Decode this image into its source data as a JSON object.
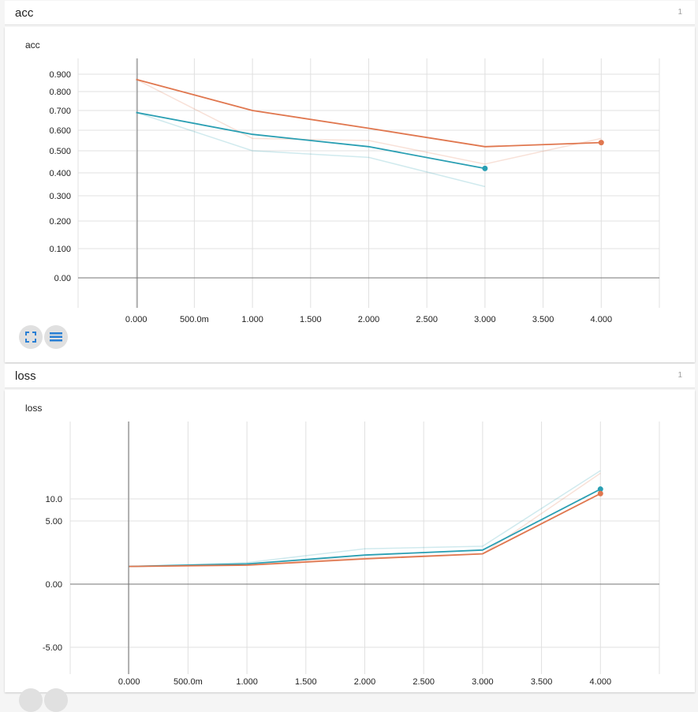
{
  "sections": [
    {
      "title": "acc",
      "count": "1"
    },
    {
      "title": "loss",
      "count": "1"
    }
  ],
  "colors": {
    "teal": "#2a9fb3",
    "orange": "#e0774f",
    "grid": "#e0e0e0",
    "axis": "#757575"
  },
  "chart_data": [
    {
      "type": "line",
      "title": "acc",
      "x_ticks": [
        "0.000",
        "500.0m",
        "1.000",
        "1.500",
        "2.000",
        "2.500",
        "3.000",
        "3.500",
        "4.000"
      ],
      "y_ticks": [
        {
          "value": 0.9,
          "label": "0.900"
        },
        {
          "value": 0.8,
          "label": "0.800"
        },
        {
          "value": 0.7,
          "label": "0.700"
        },
        {
          "value": 0.6,
          "label": "0.600"
        },
        {
          "value": 0.5,
          "label": "0.500"
        },
        {
          "value": 0.4,
          "label": "0.400"
        },
        {
          "value": 0.3,
          "label": "0.300"
        },
        {
          "value": 0.2,
          "label": "0.200"
        },
        {
          "value": 0.1,
          "label": "0.100"
        },
        {
          "value": 0.0,
          "label": "0.00"
        }
      ],
      "x_range": [
        -0.5,
        4.5
      ],
      "series": [
        {
          "color": "#e0774f",
          "smoothed": true,
          "x": [
            0,
            1,
            2,
            3,
            4
          ],
          "y": [
            0.87,
            0.7,
            0.61,
            0.52,
            0.54
          ]
        },
        {
          "color": "#e0774f",
          "smoothed": false,
          "x": [
            0,
            1,
            2,
            3,
            4
          ],
          "y": [
            0.87,
            0.56,
            0.55,
            0.44,
            0.56
          ]
        },
        {
          "color": "#2a9fb3",
          "smoothed": true,
          "x": [
            0,
            1,
            2,
            3
          ],
          "y": [
            0.69,
            0.58,
            0.52,
            0.42
          ]
        },
        {
          "color": "#2a9fb3",
          "smoothed": false,
          "x": [
            0,
            1,
            2,
            3
          ],
          "y": [
            0.69,
            0.5,
            0.47,
            0.34
          ]
        }
      ]
    },
    {
      "type": "line",
      "title": "loss",
      "x_ticks": [
        "0.000",
        "500.0m",
        "1.000",
        "1.500",
        "2.000",
        "2.500",
        "3.000",
        "3.500",
        "4.000"
      ],
      "y_ticks": [
        {
          "value": 10,
          "label": "10.0"
        },
        {
          "value": 5,
          "label": "5.00"
        },
        {
          "value": 0,
          "label": "0.00"
        },
        {
          "value": -5,
          "label": "-5.00"
        }
      ],
      "x_range": [
        -0.5,
        4.5
      ],
      "series": [
        {
          "color": "#2a9fb3",
          "smoothed": false,
          "x": [
            0,
            1,
            2,
            3,
            4
          ],
          "y": [
            1.4,
            1.7,
            2.8,
            3.0,
            16.4
          ]
        },
        {
          "color": "#e0774f",
          "smoothed": false,
          "x": [
            0,
            1,
            2,
            3,
            4
          ],
          "y": [
            1.4,
            1.6,
            2.1,
            2.4,
            15.8
          ]
        },
        {
          "color": "#2a9fb3",
          "smoothed": true,
          "x": [
            0,
            1,
            2,
            3,
            4
          ],
          "y": [
            1.4,
            1.6,
            2.3,
            2.7,
            12.2
          ]
        },
        {
          "color": "#e0774f",
          "smoothed": true,
          "x": [
            0,
            1,
            2,
            3,
            4
          ],
          "y": [
            1.4,
            1.5,
            2.0,
            2.4,
            11.2
          ]
        }
      ]
    }
  ]
}
